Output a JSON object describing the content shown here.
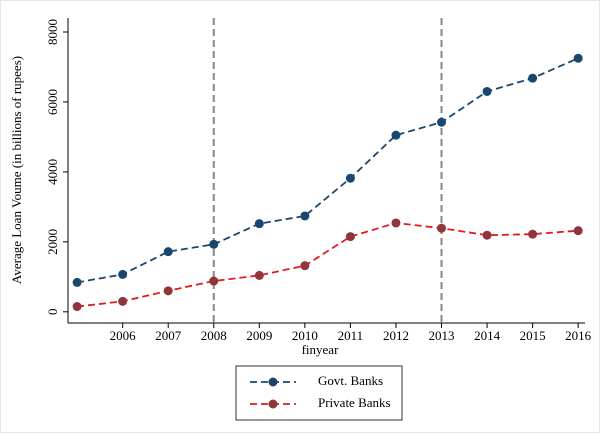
{
  "chart_data": {
    "type": "line",
    "x_label": "finyear",
    "y_label": "Average Loan Voume (in billions of rupees)",
    "x": [
      2005,
      2006,
      2007,
      2008,
      2009,
      2010,
      2011,
      2012,
      2013,
      2014,
      2015,
      2016
    ],
    "series": [
      {
        "name": "Govt. Banks",
        "color": "#1a476f",
        "marker_color": "#1a476f",
        "values": [
          840,
          1070,
          1720,
          1930,
          2520,
          2740,
          3820,
          5050,
          5420,
          6300,
          6680,
          7250
        ]
      },
      {
        "name": "Private Banks",
        "color": "#e41a1c",
        "marker_color": "#90353b",
        "values": [
          150,
          300,
          600,
          880,
          1040,
          1320,
          2150,
          2540,
          2390,
          2190,
          2220,
          2320
        ]
      }
    ],
    "xlim": [
      2004.8,
      2016.15
    ],
    "ylim": [
      -320,
      8400
    ],
    "xticks": [
      2006,
      2007,
      2008,
      2009,
      2010,
      2011,
      2012,
      2013,
      2014,
      2015,
      2016
    ],
    "yticks": [
      0,
      2000,
      4000,
      6000,
      8000
    ],
    "vlines": [
      2008,
      2013
    ],
    "vline_color": "#888888",
    "legend": "bottom"
  }
}
